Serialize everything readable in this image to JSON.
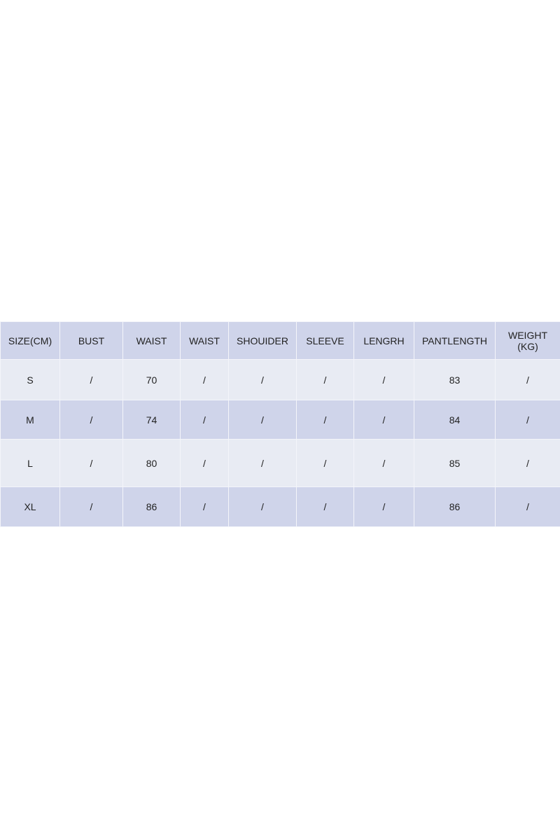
{
  "size_chart": {
    "headers": [
      "SIZE(CM)",
      "BUST",
      "WAIST",
      "WAIST",
      "SHOUIDER",
      "SLEEVE",
      "LENGRH",
      "PANTLENGTH",
      "WEIGHT (KG)"
    ],
    "rows": [
      [
        "S",
        "/",
        "70",
        "/",
        "/",
        "/",
        "/",
        "83",
        "/"
      ],
      [
        "M",
        "/",
        "74",
        "/",
        "/",
        "/",
        "/",
        "84",
        "/"
      ],
      [
        "L",
        "/",
        "80",
        "/",
        "/",
        "/",
        "/",
        "85",
        "/"
      ],
      [
        "XL",
        "/",
        "86",
        "/",
        "/",
        "/",
        "/",
        "86",
        "/"
      ]
    ],
    "colors": {
      "header_row": "#cfd4ea",
      "light_row": "#e8ebf3"
    }
  }
}
